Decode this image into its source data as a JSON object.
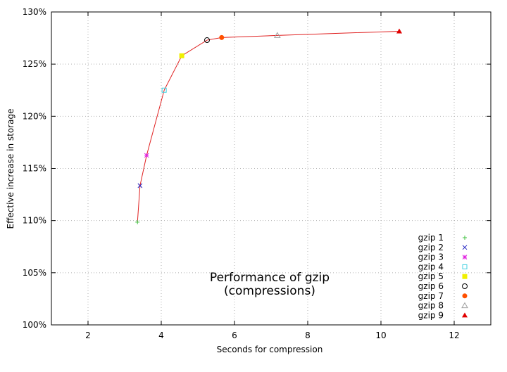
{
  "chart_data": {
    "type": "line",
    "title": "Performance of gzip",
    "subtitle": "(compressions)",
    "xlabel": "Seconds for compression",
    "ylabel": "Effective increase in storage",
    "xlim": [
      1,
      13
    ],
    "ylim": [
      100,
      130
    ],
    "xticks": [
      2,
      4,
      6,
      8,
      10,
      12
    ],
    "yticks": [
      "100%",
      "105%",
      "110%",
      "115%",
      "120%",
      "125%",
      "130%"
    ],
    "ytick_values": [
      100,
      105,
      110,
      115,
      120,
      125,
      130
    ],
    "grid": true,
    "legend_position": "bottom-right",
    "line_color": "#e02020",
    "series": [
      {
        "name": "gzip 1",
        "x": 3.35,
        "y": 109.85,
        "marker": "plus",
        "color": "#40c040"
      },
      {
        "name": "gzip 2",
        "x": 3.42,
        "y": 113.35,
        "marker": "cross",
        "color": "#2020c0"
      },
      {
        "name": "gzip 3",
        "x": 3.6,
        "y": 116.25,
        "marker": "star",
        "color": "#e020e0"
      },
      {
        "name": "gzip 4",
        "x": 4.08,
        "y": 122.5,
        "marker": "open-square",
        "color": "#40d0e0"
      },
      {
        "name": "gzip 5",
        "x": 4.56,
        "y": 125.8,
        "marker": "filled-square",
        "color": "#f0f000"
      },
      {
        "name": "gzip 6",
        "x": 5.25,
        "y": 127.3,
        "marker": "open-circle",
        "color": "#000000"
      },
      {
        "name": "gzip 7",
        "x": 5.65,
        "y": 127.55,
        "marker": "filled-circle",
        "color": "#ff5000"
      },
      {
        "name": "gzip 8",
        "x": 7.17,
        "y": 127.75,
        "marker": "open-triangle",
        "color": "#a0a0a0"
      },
      {
        "name": "gzip 9",
        "x": 10.5,
        "y": 128.15,
        "marker": "filled-triangle",
        "color": "#e00000"
      }
    ]
  }
}
